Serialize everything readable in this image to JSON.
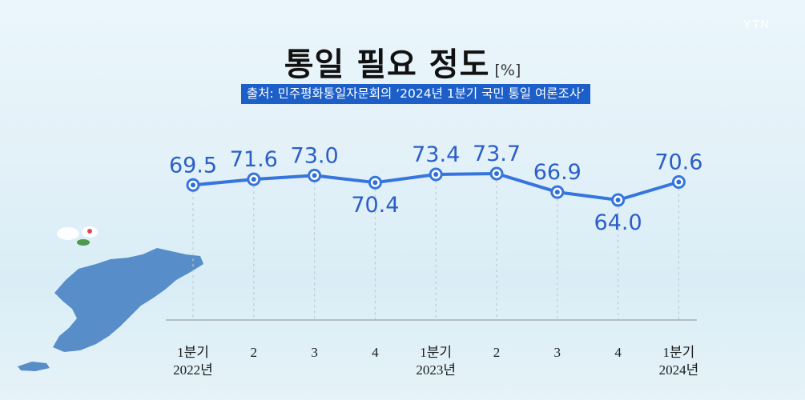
{
  "watermark": "YTN",
  "title": "통일 필요 정도",
  "unit": "[%]",
  "source": "출처: 민주평화통일자문회의 ‘2024년 1분기 국민 통일 여론조사’",
  "colors": {
    "line": "#3575dd",
    "marker_fill": "#ffffff",
    "marker_inner": "#2e6fd9",
    "value_label": "#2b5fc7",
    "source_bg": "#1d5fc9",
    "map": "#3f7bbf"
  },
  "chart_data": {
    "type": "line",
    "title": "통일 필요 정도",
    "unit": "%",
    "categories": [
      "1분기 2022년",
      "2",
      "3",
      "4",
      "1분기 2023년",
      "2",
      "3",
      "4",
      "1분기 2024년"
    ],
    "tick_labels": [
      {
        "line1": "1분기",
        "line2": "2022년"
      },
      {
        "line1": "2",
        "line2": ""
      },
      {
        "line1": "3",
        "line2": ""
      },
      {
        "line1": "4",
        "line2": ""
      },
      {
        "line1": "1분기",
        "line2": "2023년"
      },
      {
        "line1": "2",
        "line2": ""
      },
      {
        "line1": "3",
        "line2": ""
      },
      {
        "line1": "4",
        "line2": ""
      },
      {
        "line1": "1분기",
        "line2": "2024년"
      }
    ],
    "values": [
      69.5,
      71.6,
      73.0,
      70.4,
      73.4,
      73.7,
      66.9,
      64.0,
      70.6
    ],
    "data_labels": [
      "69.5",
      "71.6",
      "73.0",
      "70.4",
      "73.4",
      "73.7",
      "66.9",
      "64.0",
      "70.6"
    ],
    "label_position": [
      "above",
      "above",
      "above",
      "below",
      "above",
      "above",
      "above",
      "below",
      "above"
    ],
    "grid": false,
    "legend": "none"
  }
}
